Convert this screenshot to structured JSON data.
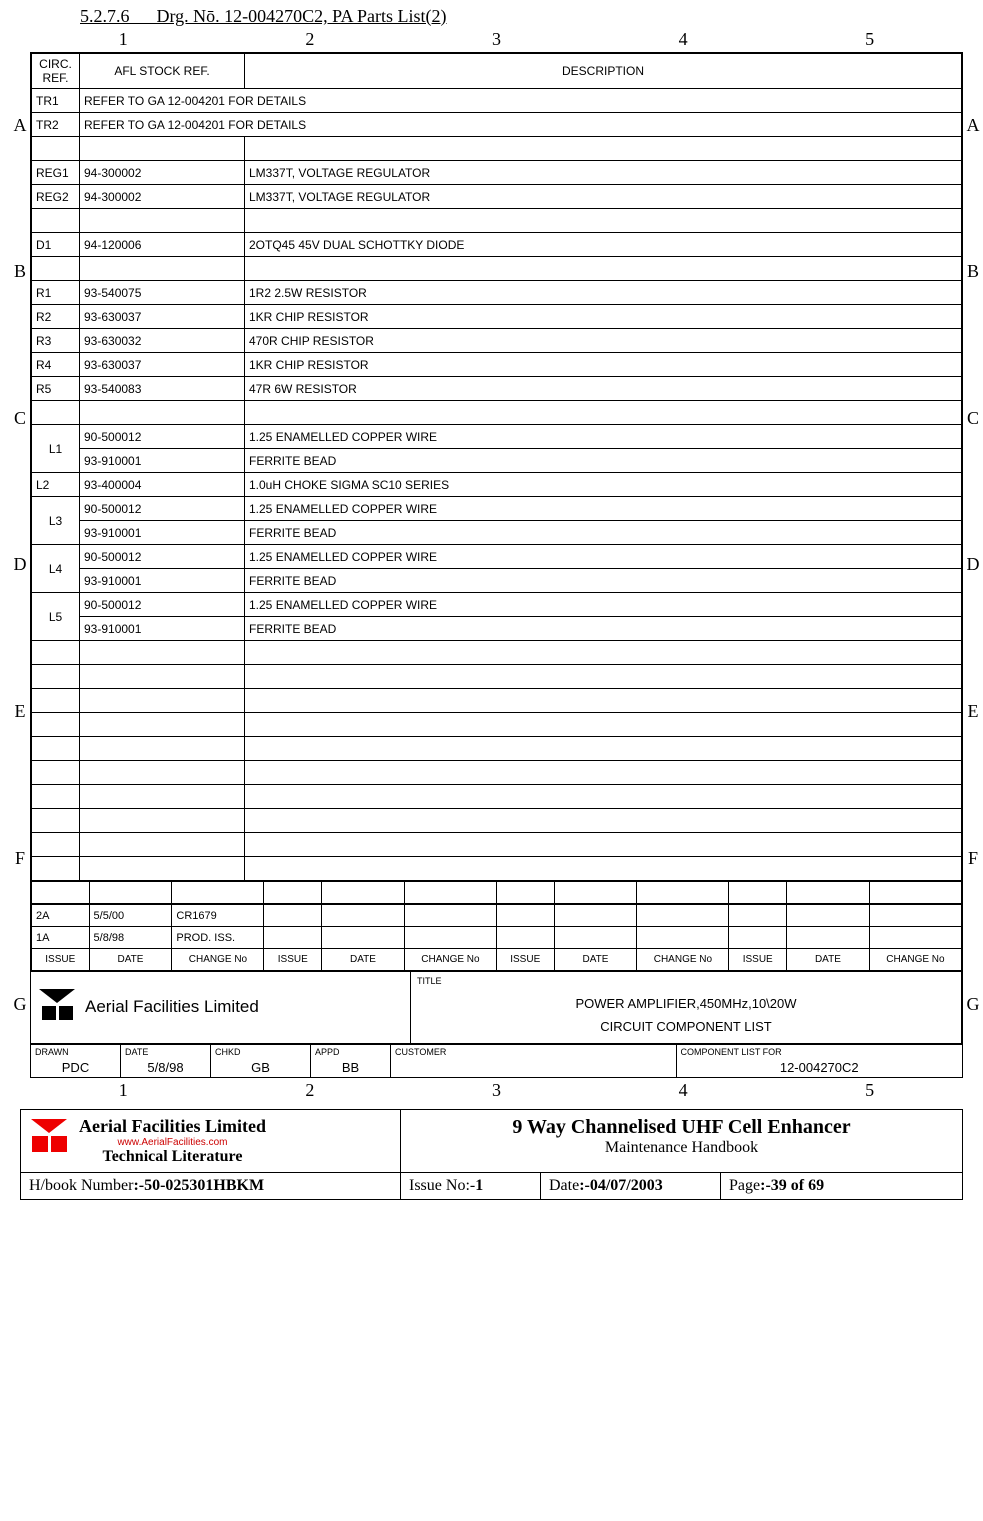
{
  "section": {
    "number": "5.2.7.6",
    "title": "Drg. Nō. 12-004270C2, PA Parts List(2)"
  },
  "frame": {
    "col_markers": [
      "1",
      "2",
      "3",
      "4",
      "5"
    ],
    "row_markers": [
      "A",
      "B",
      "C",
      "D",
      "E",
      "F",
      "G"
    ]
  },
  "headers": {
    "circ": "CIRC. REF.",
    "afl": "AFL STOCK REF.",
    "desc": "DESCRIPTION"
  },
  "parts": [
    {
      "circ": "TR1",
      "afl": "REFER TO GA 12-004201 FOR DETAILS",
      "desc": "",
      "afl_span": true
    },
    {
      "circ": "TR2",
      "afl": "REFER TO GA 12-004201 FOR DETAILS",
      "desc": "",
      "afl_span": true
    },
    {
      "circ": "",
      "afl": "",
      "desc": ""
    },
    {
      "circ": "REG1",
      "afl": "94-300002",
      "desc": "LM337T, VOLTAGE REGULATOR"
    },
    {
      "circ": "REG2",
      "afl": "94-300002",
      "desc": "LM337T, VOLTAGE REGULATOR"
    },
    {
      "circ": "",
      "afl": "",
      "desc": ""
    },
    {
      "circ": "D1",
      "afl": "94-120006",
      "desc": "2OTQ45 45V DUAL SCHOTTKY DIODE"
    },
    {
      "circ": "",
      "afl": "",
      "desc": ""
    },
    {
      "circ": "R1",
      "afl": "93-540075",
      "desc": "1R2 2.5W RESISTOR"
    },
    {
      "circ": "R2",
      "afl": "93-630037",
      "desc": "1KR CHIP RESISTOR"
    },
    {
      "circ": "R3",
      "afl": "93-630032",
      "desc": "470R CHIP RESISTOR"
    },
    {
      "circ": "R4",
      "afl": "93-630037",
      "desc": "1KR CHIP RESISTOR"
    },
    {
      "circ": "R5",
      "afl": "93-540083",
      "desc": "47R 6W RESISTOR"
    },
    {
      "circ": "",
      "afl": "",
      "desc": ""
    },
    {
      "circ": "L1",
      "afl": "90-500012",
      "desc": "1.25 ENAMELLED COPPER WIRE",
      "rowspan": 2
    },
    {
      "circ": null,
      "afl": "93-910001",
      "desc": "FERRITE BEAD"
    },
    {
      "circ": "L2",
      "afl": "93-400004",
      "desc": "1.0uH CHOKE SIGMA SC10 SERIES"
    },
    {
      "circ": "L3",
      "afl": "90-500012",
      "desc": "1.25 ENAMELLED COPPER WIRE",
      "rowspan": 2
    },
    {
      "circ": null,
      "afl": "93-910001",
      "desc": "FERRITE BEAD"
    },
    {
      "circ": "L4",
      "afl": "90-500012",
      "desc": "1.25 ENAMELLED COPPER WIRE",
      "rowspan": 2
    },
    {
      "circ": null,
      "afl": "93-910001",
      "desc": "FERRITE BEAD"
    },
    {
      "circ": "L5",
      "afl": "90-500012",
      "desc": "1.25 ENAMELLED COPPER WIRE",
      "rowspan": 2
    },
    {
      "circ": null,
      "afl": "93-910001",
      "desc": "FERRITE BEAD"
    },
    {
      "circ": "",
      "afl": "",
      "desc": ""
    },
    {
      "circ": "",
      "afl": "",
      "desc": ""
    },
    {
      "circ": "",
      "afl": "",
      "desc": ""
    },
    {
      "circ": "",
      "afl": "",
      "desc": ""
    },
    {
      "circ": "",
      "afl": "",
      "desc": ""
    },
    {
      "circ": "",
      "afl": "",
      "desc": ""
    },
    {
      "circ": "",
      "afl": "",
      "desc": ""
    },
    {
      "circ": "",
      "afl": "",
      "desc": ""
    },
    {
      "circ": "",
      "afl": "",
      "desc": ""
    },
    {
      "circ": "",
      "afl": "",
      "desc": ""
    }
  ],
  "revisions": {
    "rows": [
      {
        "issue": "2A",
        "date": "5/5/00",
        "change": "CR1679"
      },
      {
        "issue": "1A",
        "date": "5/8/98",
        "change": "PROD. ISS."
      }
    ],
    "headers": [
      "ISSUE",
      "DATE",
      "CHANGE No",
      "ISSUE",
      "DATE",
      "CHANGE No",
      "ISSUE",
      "DATE",
      "CHANGE No",
      "ISSUE",
      "DATE",
      "CHANGE No"
    ]
  },
  "titleblock": {
    "company": "Aerial Facilities Limited",
    "title_label": "TITLE",
    "title1": "POWER AMPLIFIER,450MHz,10\\20W",
    "title2": "CIRCUIT COMPONENT LIST",
    "drawn_label": "DRAWN",
    "drawn": "PDC",
    "date_label": "DATE",
    "date": "5/8/98",
    "chkd_label": "CHKD",
    "chkd": "GB",
    "appd_label": "APPD",
    "appd": "BB",
    "customer_label": "CUSTOMER",
    "customer": "",
    "complist_label": "COMPONENT LIST FOR",
    "complist": "12-004270C2"
  },
  "footer": {
    "company1": "Aerial  Facilities  Limited",
    "url": "www.AerialFacilities.com",
    "company2": "Technical Literature",
    "title1": "9 Way Channelised UHF Cell Enhancer",
    "title2": "Maintenance Handbook",
    "hbook_label": "H/book Number",
    "hbook_val": ":-50-025301HBKM",
    "issue_label": "Issue No:-",
    "issue_val": "1",
    "date_label": "Date",
    "date_val": ":-04/07/2003",
    "page_label": "Page",
    "page_val": ":-39 of 69"
  }
}
